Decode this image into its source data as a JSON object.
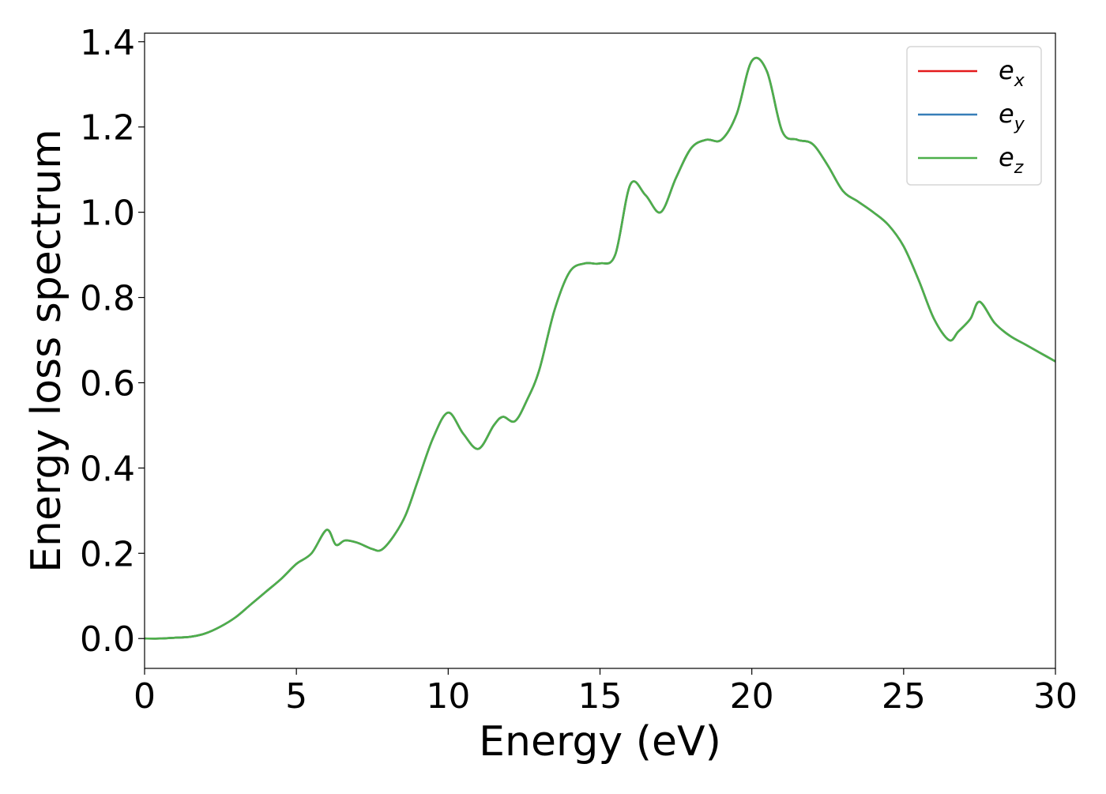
{
  "chart_data": {
    "type": "line",
    "title": "",
    "xlabel": "Energy (eV)",
    "ylabel": "Energy loss spectrum",
    "xlim": [
      0,
      30
    ],
    "ylim": [
      -0.07,
      1.42
    ],
    "xticks": [
      0,
      5,
      10,
      15,
      20,
      25,
      30
    ],
    "yticks": [
      0.0,
      0.2,
      0.4,
      0.6,
      0.8,
      1.0,
      1.2,
      1.4
    ],
    "xtick_labels": [
      "0",
      "5",
      "10",
      "15",
      "20",
      "25",
      "30"
    ],
    "ytick_labels": [
      "0.0",
      "0.2",
      "0.4",
      "0.6",
      "0.8",
      "1.0",
      "1.2",
      "1.4"
    ],
    "grid": false,
    "legend_position": "top-right",
    "x": [
      0,
      0.5,
      1,
      1.5,
      2,
      2.5,
      3,
      3.5,
      4,
      4.5,
      5,
      5.5,
      6,
      6.3,
      6.6,
      7,
      7.5,
      7.8,
      8.2,
      8.6,
      9,
      9.5,
      10,
      10.5,
      11,
      11.5,
      11.8,
      12.2,
      12.6,
      13,
      13.5,
      14,
      14.5,
      15,
      15.5,
      16,
      16.5,
      17,
      17.5,
      18,
      18.5,
      19,
      19.5,
      20,
      20.5,
      21,
      21.5,
      22,
      22.5,
      23,
      23.5,
      24,
      24.5,
      25,
      25.5,
      26,
      26.5,
      26.8,
      27.2,
      27.5,
      28,
      28.5,
      29,
      29.5,
      30
    ],
    "series": [
      {
        "name": "e_x",
        "label_base": "e",
        "label_sub": "x",
        "color": "#e41a1c",
        "values": [
          0.0,
          0.0,
          0.002,
          0.004,
          0.012,
          0.028,
          0.05,
          0.08,
          0.11,
          0.14,
          0.175,
          0.2,
          0.255,
          0.22,
          0.23,
          0.225,
          0.21,
          0.208,
          0.24,
          0.29,
          0.37,
          0.47,
          0.53,
          0.48,
          0.445,
          0.5,
          0.52,
          0.51,
          0.56,
          0.63,
          0.77,
          0.86,
          0.88,
          0.88,
          0.9,
          1.065,
          1.04,
          1.0,
          1.08,
          1.15,
          1.17,
          1.17,
          1.23,
          1.355,
          1.33,
          1.19,
          1.17,
          1.16,
          1.11,
          1.05,
          1.025,
          1.0,
          0.97,
          0.92,
          0.84,
          0.75,
          0.7,
          0.72,
          0.75,
          0.79,
          0.74,
          0.71,
          0.69,
          0.67,
          0.65
        ]
      },
      {
        "name": "e_y",
        "label_base": "e",
        "label_sub": "y",
        "color": "#377eb8",
        "values": [
          0.0,
          0.0,
          0.002,
          0.004,
          0.012,
          0.028,
          0.05,
          0.08,
          0.11,
          0.14,
          0.175,
          0.2,
          0.255,
          0.22,
          0.23,
          0.225,
          0.21,
          0.208,
          0.24,
          0.29,
          0.37,
          0.47,
          0.53,
          0.48,
          0.445,
          0.5,
          0.52,
          0.51,
          0.56,
          0.63,
          0.77,
          0.86,
          0.88,
          0.88,
          0.9,
          1.065,
          1.04,
          1.0,
          1.08,
          1.15,
          1.17,
          1.17,
          1.23,
          1.355,
          1.33,
          1.19,
          1.17,
          1.16,
          1.11,
          1.05,
          1.025,
          1.0,
          0.97,
          0.92,
          0.84,
          0.75,
          0.7,
          0.72,
          0.75,
          0.79,
          0.74,
          0.71,
          0.69,
          0.67,
          0.65
        ]
      },
      {
        "name": "e_z",
        "label_base": "e",
        "label_sub": "z",
        "color": "#4daf4a",
        "values": [
          0.0,
          0.0,
          0.002,
          0.004,
          0.012,
          0.028,
          0.05,
          0.08,
          0.11,
          0.14,
          0.175,
          0.2,
          0.255,
          0.22,
          0.23,
          0.225,
          0.21,
          0.208,
          0.24,
          0.29,
          0.37,
          0.47,
          0.53,
          0.48,
          0.445,
          0.5,
          0.52,
          0.51,
          0.56,
          0.63,
          0.77,
          0.86,
          0.88,
          0.88,
          0.9,
          1.065,
          1.04,
          1.0,
          1.08,
          1.15,
          1.17,
          1.17,
          1.23,
          1.355,
          1.33,
          1.19,
          1.17,
          1.16,
          1.11,
          1.05,
          1.025,
          1.0,
          0.97,
          0.92,
          0.84,
          0.75,
          0.7,
          0.72,
          0.75,
          0.79,
          0.74,
          0.71,
          0.69,
          0.67,
          0.65
        ]
      }
    ]
  }
}
